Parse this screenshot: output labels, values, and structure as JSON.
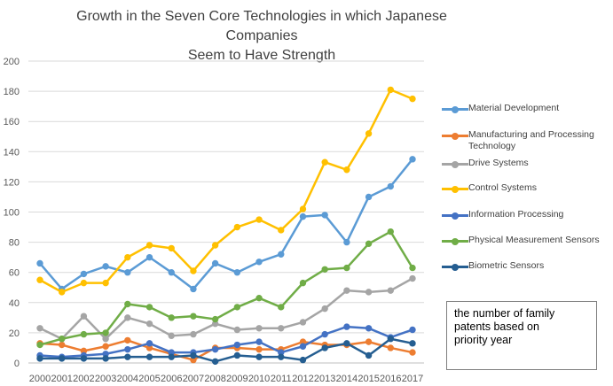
{
  "chart_data": {
    "type": "line",
    "title": "Growth in the Seven Core Technologies in which Japanese Companies Seem to Have Strength",
    "title_lines": [
      "Growth in the Seven Core Technologies in which Japanese Companies",
      "Seem to Have Strength"
    ],
    "xlabel": "",
    "ylabel": "",
    "ylim": [
      0,
      200
    ],
    "yticks": [
      0,
      20,
      40,
      60,
      80,
      100,
      120,
      140,
      160,
      180,
      200
    ],
    "grid": true,
    "legend_position": "right",
    "categories": [
      "2000",
      "2001",
      "2002",
      "2003",
      "2004",
      "2005",
      "2006",
      "2007",
      "2008",
      "2009",
      "2010",
      "2011",
      "2012",
      "2013",
      "2014",
      "2015",
      "2016",
      "2017"
    ],
    "series": [
      {
        "name": "Material Development",
        "color": "#5b9bd5",
        "values": [
          66,
          49,
          59,
          64,
          60,
          70,
          60,
          49,
          66,
          60,
          67,
          72,
          97,
          98,
          80,
          110,
          117,
          135
        ]
      },
      {
        "name": "Manufacturing and Processing Technology",
        "name_lines": [
          "Manufacturing and Processing",
          "Technology"
        ],
        "color": "#ed7d31",
        "values": [
          13,
          12,
          8,
          11,
          15,
          10,
          6,
          2,
          10,
          10,
          9,
          9,
          14,
          12,
          12,
          14,
          10,
          7
        ]
      },
      {
        "name": "Drive Systems",
        "color": "#a5a5a5",
        "values": [
          23,
          16,
          31,
          16,
          30,
          26,
          18,
          19,
          26,
          22,
          23,
          23,
          27,
          36,
          48,
          47,
          48,
          56
        ]
      },
      {
        "name": "Control Systems",
        "color": "#ffc000",
        "values": [
          55,
          47,
          53,
          53,
          70,
          78,
          76,
          61,
          78,
          90,
          95,
          88,
          102,
          133,
          128,
          152,
          181,
          175
        ]
      },
      {
        "name": "Information Processing",
        "color": "#4472c4",
        "values": [
          5,
          4,
          5,
          6,
          9,
          13,
          7,
          7,
          9,
          12,
          14,
          7,
          11,
          19,
          24,
          23,
          17,
          22
        ]
      },
      {
        "name": "Physical Measurement Sensors",
        "color": "#70ad47",
        "values": [
          12,
          16,
          19,
          20,
          39,
          37,
          30,
          31,
          29,
          37,
          43,
          37,
          53,
          62,
          63,
          79,
          87,
          63
        ]
      },
      {
        "name": "Biometric Sensors",
        "color": "#255e91",
        "values": [
          3,
          3,
          3,
          3,
          4,
          4,
          4,
          5,
          1,
          5,
          4,
          4,
          2,
          10,
          13,
          5,
          16,
          13
        ]
      }
    ]
  },
  "note": {
    "lines": [
      "the number of family",
      "patents based on",
      "priority year"
    ]
  }
}
